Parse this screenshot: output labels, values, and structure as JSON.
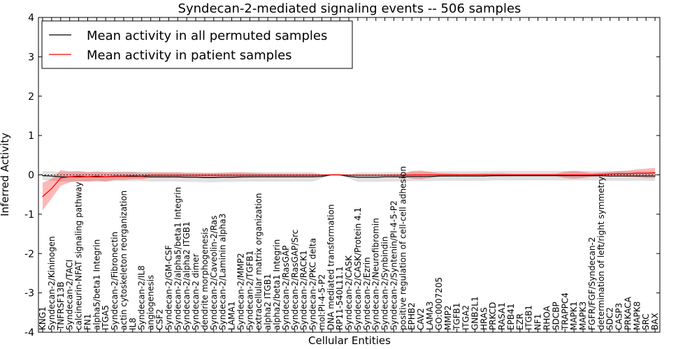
{
  "chart_data": {
    "type": "line",
    "title": "Syndecan-2-mediated signaling events -- 506 samples",
    "xlabel": "Cellular Entities",
    "ylabel": "Inferred Activity",
    "ylim": [
      -4,
      4
    ],
    "yticks": [
      "-4",
      "-3",
      "-2",
      "-1",
      "0",
      "1",
      "2",
      "3",
      "4"
    ],
    "grid": false,
    "legend_position": "top-left",
    "categories": [
      "KNG1",
      "Syndecan-2/Kininogen",
      "TNFRSF13B",
      "Syndecan-2/TACI",
      "calcineurin-NFAT signaling pathway",
      "FN1",
      "alpha5/beta1 Integrin",
      "ITGA5",
      "Syndecan-2/Fibronectin",
      "actin cytoskeleton reorganization",
      "IL8",
      "Syndecan-2/IL8",
      "angiogenesis",
      "CSF2",
      "Syndecan-2/GM-CSF",
      "Syndecan-2/alpha5/beta1 Integrin",
      "Syndecan-2/alpha2 ITGB1",
      "Syndecan-2 dimer",
      "dendrite morphogenesis",
      "Syndecan-2/Caveolin-2/Ras",
      "Syndecan-2/Laminin alpha3",
      "LAMA1",
      "Syndecan-2/MMP2",
      "Syndecan-2/TGFB1",
      "extracellular matrix organization",
      "alpha2 ITGB1",
      "alpha2/beta1 Integrin",
      "Syndecan-2/RasGAP",
      "Syndecan-2/RasGAP/Src",
      "Syndecan-2/RACK1",
      "Syndecan-2/PKC delta",
      "mol:PI-4-5-P2",
      "DNA mediated transformation",
      "RP11-540L11.1",
      "Syndecan-2/CASK",
      "Syndecan-2/CASK/Protein 4.1",
      "Syndecan-2/Ezrin",
      "Syndecan-2/Neurofibromin",
      "Syndecan-2/Synbindin",
      "Syndecan-2/Syntenin/PI-4-5-P2",
      "positive regulation of cell-cell adhesion",
      "EPHB2",
      "CAV2",
      "LAMA3",
      "GO:0007205",
      "MMP2",
      "TGFB1",
      "ITGA2",
      "GNB2L1",
      "HRAS",
      "PRKCD",
      "RASA1",
      "EPB41",
      "EZR",
      "ITGB1",
      "NF1",
      "RHOA",
      "SDCBP",
      "TRAPPC4",
      "MAPK1",
      "MAPK3",
      "FGFR/FGF/Syndecan-2",
      "determination of left/right symmetry",
      "SDC2",
      "CASP3",
      "PRKACA",
      "MAPK8",
      "SRC",
      "BAX"
    ],
    "series": [
      {
        "name": "Mean activity in all permuted samples",
        "color": "#000000",
        "values": [
          -0.02,
          -0.03,
          -0.05,
          -0.05,
          -0.05,
          -0.05,
          -0.05,
          -0.05,
          -0.04,
          -0.04,
          -0.04,
          -0.04,
          -0.05,
          -0.05,
          -0.05,
          -0.05,
          -0.06,
          -0.06,
          -0.07,
          -0.07,
          -0.06,
          -0.06,
          -0.05,
          -0.05,
          -0.05,
          -0.05,
          -0.05,
          -0.05,
          -0.05,
          -0.05,
          -0.05,
          -0.04,
          0.0,
          0.0,
          -0.04,
          -0.06,
          -0.06,
          -0.06,
          -0.05,
          -0.05,
          -0.05,
          -0.04,
          -0.04,
          -0.04,
          -0.03,
          -0.03,
          -0.03,
          -0.03,
          -0.03,
          -0.03,
          -0.02,
          -0.02,
          -0.02,
          -0.02,
          -0.02,
          -0.02,
          -0.02,
          -0.02,
          -0.02,
          -0.02,
          -0.02,
          -0.02,
          -0.02,
          -0.03,
          -0.03,
          -0.03,
          -0.03,
          -0.03,
          -0.03
        ],
        "band": [
          0.11,
          0.12,
          0.12,
          0.12,
          0.12,
          0.12,
          0.12,
          0.12,
          0.12,
          0.12,
          0.12,
          0.12,
          0.12,
          0.12,
          0.12,
          0.12,
          0.12,
          0.12,
          0.12,
          0.12,
          0.12,
          0.12,
          0.12,
          0.12,
          0.12,
          0.12,
          0.12,
          0.12,
          0.12,
          0.12,
          0.12,
          0.05,
          0.02,
          0.02,
          0.05,
          0.12,
          0.12,
          0.12,
          0.12,
          0.12,
          0.12,
          0.12,
          0.12,
          0.12,
          0.12,
          0.12,
          0.12,
          0.12,
          0.12,
          0.12,
          0.12,
          0.12,
          0.12,
          0.12,
          0.12,
          0.12,
          0.12,
          0.12,
          0.12,
          0.12,
          0.12,
          0.12,
          0.12,
          0.12,
          0.12,
          0.12,
          0.12,
          0.12,
          0.12
        ]
      },
      {
        "name": "Mean activity in patient samples",
        "color": "#ff0000",
        "values": [
          -0.55,
          -0.35,
          -0.08,
          -0.05,
          -0.03,
          -0.05,
          -0.03,
          -0.05,
          -0.03,
          -0.03,
          -0.02,
          -0.03,
          -0.01,
          -0.01,
          -0.01,
          -0.01,
          -0.01,
          -0.01,
          -0.01,
          -0.01,
          -0.01,
          -0.01,
          -0.01,
          -0.01,
          -0.01,
          -0.01,
          -0.01,
          -0.01,
          -0.01,
          -0.01,
          -0.01,
          -0.01,
          0.0,
          0.0,
          -0.01,
          -0.01,
          -0.01,
          -0.01,
          -0.01,
          -0.01,
          -0.01,
          0.0,
          0.0,
          0.0,
          0.0,
          0.0,
          0.0,
          0.0,
          0.0,
          0.0,
          0.0,
          0.0,
          0.0,
          0.0,
          0.0,
          0.0,
          0.0,
          0.0,
          0.0,
          0.0,
          0.0,
          0.0,
          0.01,
          0.02,
          0.03,
          0.03,
          0.04,
          0.04,
          0.05
        ],
        "band": [
          0.35,
          0.25,
          0.2,
          0.14,
          0.13,
          0.12,
          0.12,
          0.12,
          0.1,
          0.1,
          0.09,
          0.08,
          0.07,
          0.07,
          0.07,
          0.07,
          0.06,
          0.06,
          0.06,
          0.06,
          0.06,
          0.07,
          0.07,
          0.06,
          0.05,
          0.04,
          0.04,
          0.04,
          0.04,
          0.04,
          0.04,
          0.03,
          0.01,
          0.01,
          0.02,
          0.02,
          0.02,
          0.02,
          0.02,
          0.03,
          0.03,
          0.1,
          0.11,
          0.08,
          0.05,
          0.04,
          0.03,
          0.03,
          0.03,
          0.04,
          0.04,
          0.04,
          0.03,
          0.03,
          0.03,
          0.03,
          0.03,
          0.03,
          0.08,
          0.1,
          0.08,
          0.05,
          0.05,
          0.06,
          0.07,
          0.08,
          0.1,
          0.12,
          0.13
        ]
      }
    ]
  }
}
